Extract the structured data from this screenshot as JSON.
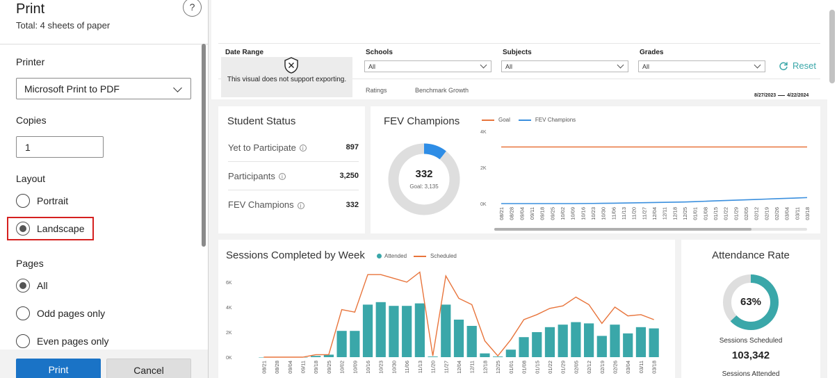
{
  "print_panel": {
    "title": "Print",
    "subtitle": "Total: 4 sheets of paper",
    "help_label": "?",
    "printer_label": "Printer",
    "printer_value": "Microsoft Print to PDF",
    "copies_label": "Copies",
    "copies_value": "1",
    "layout_label": "Layout",
    "layout_options": [
      "Portrait",
      "Landscape"
    ],
    "layout_selected": "Landscape",
    "pages_label": "Pages",
    "pages_options": [
      "All",
      "Odd pages only",
      "Even pages only"
    ],
    "pages_selected": "All",
    "print_button": "Print",
    "cancel_button": "Cancel"
  },
  "report": {
    "filters": {
      "date_range_label": "Date Range",
      "schools_label": "Schools",
      "schools_value": "All",
      "subjects_label": "Subjects",
      "subjects_value": "All",
      "grades_label": "Grades",
      "grades_value": "All",
      "reset_label": "Reset",
      "date_start": "8/27/2023",
      "date_end": "4/22/2024",
      "not_supported": "This visual does not support exporting.",
      "tabs": [
        "Ratings",
        "Benchmark Growth"
      ]
    },
    "student_status": {
      "title": "Student Status",
      "rows": [
        {
          "label": "Yet to Participate",
          "value": "897"
        },
        {
          "label": "Participants",
          "value": "3,250"
        },
        {
          "label": "FEV Champions",
          "value": "332"
        }
      ]
    },
    "fev_champions": {
      "title": "FEV Champions",
      "center_value": "332",
      "goal_text": "Goal: 3,135",
      "legend": [
        {
          "name": "Goal",
          "color": "#e8743b"
        },
        {
          "name": "FEV Champions",
          "color": "#3a8fde"
        }
      ]
    },
    "sessions": {
      "title": "Sessions Completed by Week",
      "legend": [
        {
          "name": "Attended",
          "color": "#3aa7a9"
        },
        {
          "name": "Scheduled",
          "color": "#e8743b"
        }
      ]
    },
    "attendance": {
      "title": "Attendance Rate",
      "rate_text": "63%",
      "rate_value": 0.63,
      "scheduled_label": "Sessions Scheduled",
      "scheduled_value": "103,342",
      "attended_label": "Sessions Attended"
    }
  },
  "chart_data": [
    {
      "type": "donut",
      "title": "FEV Champions",
      "value": 332,
      "goal": 3135
    },
    {
      "type": "line",
      "title": "FEV Champions vs Goal",
      "x": [
        "08/21",
        "08/28",
        "09/04",
        "09/11",
        "09/18",
        "09/25",
        "10/02",
        "10/09",
        "10/16",
        "10/23",
        "10/30",
        "11/06",
        "11/13",
        "11/20",
        "11/27",
        "12/04",
        "12/11",
        "12/18",
        "12/25",
        "01/01",
        "01/08",
        "01/15",
        "01/22",
        "01/29",
        "02/05",
        "02/12",
        "02/19",
        "02/26",
        "03/04",
        "03/11",
        "03/18"
      ],
      "yticks": [
        "0K",
        "2K",
        "4K"
      ],
      "ylim": [
        0,
        4000
      ],
      "series": [
        {
          "name": "Goal",
          "values": [
            3135,
            3135,
            3135,
            3135,
            3135,
            3135,
            3135,
            3135,
            3135,
            3135,
            3135,
            3135,
            3135,
            3135,
            3135,
            3135,
            3135,
            3135,
            3135,
            3135,
            3135,
            3135,
            3135,
            3135,
            3135,
            3135,
            3135,
            3135,
            3135,
            3135,
            3135
          ]
        },
        {
          "name": "FEV Champions",
          "values": [
            0,
            0,
            0,
            0,
            0,
            0,
            0,
            0,
            5,
            10,
            15,
            20,
            30,
            40,
            50,
            60,
            70,
            80,
            90,
            110,
            130,
            150,
            170,
            190,
            210,
            230,
            250,
            270,
            290,
            310,
            332
          ]
        }
      ]
    },
    {
      "type": "bar",
      "title": "Sessions Completed by Week",
      "categories": [
        "08/21",
        "08/28",
        "09/04",
        "09/11",
        "09/18",
        "09/25",
        "10/02",
        "10/09",
        "10/16",
        "10/23",
        "10/30",
        "11/06",
        "11/13",
        "11/20",
        "11/27",
        "12/04",
        "12/11",
        "12/18",
        "12/25",
        "01/01",
        "01/08",
        "01/15",
        "01/22",
        "01/29",
        "02/05",
        "02/12",
        "02/19",
        "02/26",
        "03/04",
        "03/11",
        "03/18"
      ],
      "yticks": [
        "0K",
        "2K",
        "4K",
        "6K"
      ],
      "ylim": [
        0,
        6000
      ],
      "series": [
        {
          "name": "Attended",
          "values": [
            0,
            0,
            0,
            0,
            100,
            200,
            2100,
            2100,
            4200,
            4400,
            4100,
            4100,
            4300,
            50,
            4200,
            3000,
            2500,
            300,
            50,
            600,
            1600,
            2000,
            2400,
            2600,
            2800,
            2700,
            1700,
            2600,
            1900,
            2400,
            2300
          ]
        },
        {
          "name": "Scheduled",
          "values": [
            0,
            0,
            0,
            0,
            200,
            200,
            3800,
            3600,
            6600,
            6600,
            6300,
            6000,
            6800,
            100,
            6500,
            4700,
            4200,
            1300,
            100,
            1400,
            3000,
            3400,
            3900,
            4100,
            4800,
            4200,
            2700,
            4000,
            3300,
            3400,
            3000
          ]
        }
      ]
    }
  ]
}
